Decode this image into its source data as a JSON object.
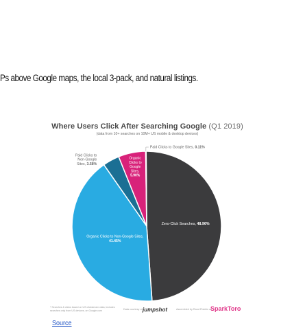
{
  "article": {
    "intro_text": "Ps above Google maps, the local 3-pack, and natural listings.",
    "source_link": "Source"
  },
  "infographic": {
    "footnote": "* Searches & clicks based on US clickstream data; includes searches only from US devices, on Google.com",
    "credit_jumpshot": "Data courtesy of",
    "jumpshot_logo": "jumpshot",
    "credit_sparktoro": "Assembled by Rand Fishkin at",
    "sparktoro_logo": "SparkToro"
  },
  "chart_data": {
    "type": "pie",
    "title": "Where Users Click After Searching Google",
    "title_suffix": "(Q1 2019)",
    "subtitle": "(data from 10+ searches on 10M+ US mobile & desktop devices)",
    "slices": [
      {
        "label": "Zero-Click Searches,",
        "value": 48.96,
        "value_text": "48.96%",
        "color": "#3b3b3d"
      },
      {
        "label": "Organic Clicks to Non-Google Sites,",
        "value": 41.45,
        "value_text": "41.45%",
        "color": "#29abe2"
      },
      {
        "label": "Paid Clicks to Non-Google Sites,",
        "value": 3.58,
        "value_text": "3.58%",
        "color": "#1b6f94"
      },
      {
        "label": "Organic Clicks to Google Sites,",
        "value": 5.9,
        "value_text": "5.90%",
        "color": "#d8227a"
      },
      {
        "label": "Paid Clicks to Google Sites,",
        "value": 0.11,
        "value_text": "0.11%",
        "color": "#e2b0cd"
      }
    ]
  }
}
